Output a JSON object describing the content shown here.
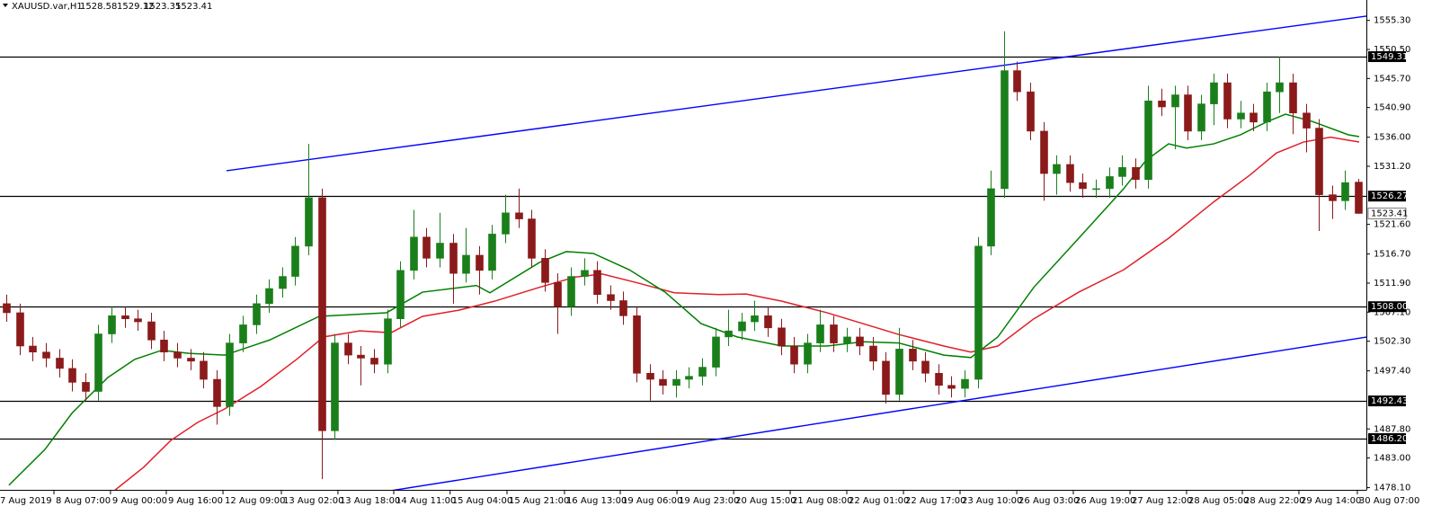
{
  "chart_data": {
    "type": "candlestick",
    "title": "XAUUSD.var,H1",
    "up_color": "#1a7f1a",
    "down_color": "#8b1a1a",
    "xlim": [
      -0.5,
      103.61
    ],
    "ylim": [
      1477.74,
      1558.67
    ],
    "yticks": [
      {
        "value": 1555.3,
        "label": "1555.30"
      },
      {
        "value": 1550.5,
        "label": "1550.50"
      },
      {
        "value": 1545.7,
        "label": "1545.70"
      },
      {
        "value": 1540.9,
        "label": "1540.90"
      },
      {
        "value": 1536,
        "label": "1536.00"
      },
      {
        "value": 1531.2,
        "label": "1531.20"
      },
      {
        "value": 1521.6,
        "label": "1521.60"
      },
      {
        "value": 1516.7,
        "label": "1516.70"
      },
      {
        "value": 1511.9,
        "label": "1511.90"
      },
      {
        "value": 1507.1,
        "label": "1507.10"
      },
      {
        "value": 1502.3,
        "label": "1502.30"
      },
      {
        "value": 1497.4,
        "label": "1497.40"
      },
      {
        "value": 1487.8,
        "label": "1487.80"
      },
      {
        "value": 1483,
        "label": "1483.00"
      },
      {
        "value": 1478.1,
        "label": "1478.10"
      }
    ],
    "xticks": [
      {
        "value": -0.64,
        "label": "7 Aug 2019"
      },
      {
        "value": 3.61,
        "label": "8 Aug 07:00"
      },
      {
        "value": 7.92,
        "label": "9 Aug 00:00"
      },
      {
        "value": 12.17,
        "label": "9 Aug 16:00"
      },
      {
        "value": 16.49,
        "label": "12 Aug 09:00"
      },
      {
        "value": 20.94,
        "label": "13 Aug 02:00"
      },
      {
        "value": 25.25,
        "label": "13 Aug 18:00"
      },
      {
        "value": 29.5,
        "label": "14 Aug 11:00"
      },
      {
        "value": 33.8,
        "label": "15 Aug 04:00"
      },
      {
        "value": 38.13,
        "label": "15 Aug 21:00"
      },
      {
        "value": 42.51,
        "label": "16 Aug 13:00"
      },
      {
        "value": 46.76,
        "label": "19 Aug 06:00"
      },
      {
        "value": 51.08,
        "label": "19 Aug 23:00"
      },
      {
        "value": 55.4,
        "label": "20 Aug 15:00"
      },
      {
        "value": 59.71,
        "label": "21 Aug 08:00"
      },
      {
        "value": 64.02,
        "label": "22 Aug 01:00"
      },
      {
        "value": 68.34,
        "label": "22 Aug 17:00"
      },
      {
        "value": 72.65,
        "label": "23 Aug 10:00"
      },
      {
        "value": 76.97,
        "label": "26 Aug 03:00"
      },
      {
        "value": 81.28,
        "label": "26 Aug 19:00"
      },
      {
        "value": 85.6,
        "label": "27 Aug 12:00"
      },
      {
        "value": 89.91,
        "label": "28 Aug 05:00"
      },
      {
        "value": 94.16,
        "label": "28 Aug 22:00"
      },
      {
        "value": 98.47,
        "label": "29 Aug 14:00"
      },
      {
        "value": 102.92,
        "label": "30 Aug 07:00"
      }
    ],
    "open": [
      1508.5,
      1507.0,
      1501.5,
      1500.5,
      1499.5,
      1497.8,
      1495.5,
      1494.0,
      1503.5,
      1506.5,
      1506.0,
      1505.5,
      1502.5,
      1500.5,
      1499.5,
      1499.0,
      1496.0,
      1491.5,
      1502.0,
      1505.0,
      1508.5,
      1511.0,
      1513.0,
      1518.0,
      1526.0,
      1487.5,
      1502.0,
      1500.0,
      1499.5,
      1498.5,
      1506.0,
      1514.0,
      1519.5,
      1516.0,
      1518.5,
      1513.5,
      1516.5,
      1514.0,
      1520.0,
      1523.5,
      1522.5,
      1516.0,
      1512.0,
      1508.0,
      1513.0,
      1514.0,
      1510.0,
      1509.0,
      1506.5,
      1497.0,
      1496.0,
      1495.0,
      1496.0,
      1496.5,
      1498.0,
      1503.0,
      1504.0,
      1505.5,
      1506.5,
      1504.5,
      1501.5,
      1498.5,
      1502.0,
      1505.0,
      1502.0,
      1503.0,
      1501.5,
      1499.0,
      1493.5,
      1501.0,
      1499.0,
      1497.0,
      1495.0,
      1494.5,
      1496.0,
      1518.0,
      1527.5,
      1547.0,
      1543.5,
      1537.0,
      1530.0,
      1531.5,
      1528.5,
      1527.5,
      1527.5,
      1529.5,
      1531.0,
      1529.0,
      1542.0,
      1541.0,
      1543.0,
      1537.0,
      1541.5,
      1545.0,
      1539.0,
      1540.0,
      1538.5,
      1543.5,
      1545.0,
      1540.0,
      1537.5,
      1526.5,
      1525.5,
      1528.58
    ],
    "high": [
      1510.0,
      1508.5,
      1503.0,
      1502.0,
      1501.0,
      1499.3,
      1497.0,
      1505.0,
      1508.0,
      1508.0,
      1507.5,
      1507.0,
      1504.0,
      1502.0,
      1501.0,
      1500.5,
      1497.5,
      1503.5,
      1506.5,
      1510.0,
      1512.5,
      1514.5,
      1519.5,
      1534.9,
      1527.5,
      1503.5,
      1503.5,
      1501.5,
      1501.0,
      1507.5,
      1515.5,
      1524.0,
      1521.0,
      1523.5,
      1520.0,
      1521.0,
      1518.0,
      1521.5,
      1526.5,
      1527.5,
      1524.0,
      1517.5,
      1513.5,
      1514.5,
      1516.0,
      1515.5,
      1511.5,
      1510.5,
      1508.0,
      1498.5,
      1497.5,
      1497.5,
      1498.0,
      1499.5,
      1504.5,
      1507.5,
      1507.0,
      1509.0,
      1508.0,
      1506.0,
      1503.0,
      1503.5,
      1507.5,
      1506.5,
      1504.5,
      1504.5,
      1503.0,
      1500.5,
      1504.5,
      1502.5,
      1500.5,
      1498.5,
      1496.5,
      1497.5,
      1519.5,
      1530.5,
      1553.5,
      1548.5,
      1545.0,
      1538.5,
      1533.0,
      1533.0,
      1530.0,
      1529.0,
      1531.0,
      1533.0,
      1532.5,
      1544.5,
      1544.0,
      1544.5,
      1544.5,
      1543.0,
      1546.5,
      1546.5,
      1542.0,
      1541.5,
      1545.0,
      1549.3,
      1546.5,
      1541.5,
      1539.0,
      1528.0,
      1530.5,
      1529.12
    ],
    "low": [
      1505.5,
      1500.0,
      1499.0,
      1498.0,
      1496.3,
      1494.0,
      1492.5,
      1492.5,
      1502.0,
      1504.5,
      1504.0,
      1501.0,
      1499.0,
      1498.0,
      1497.5,
      1494.5,
      1488.5,
      1490.0,
      1500.5,
      1503.5,
      1507.0,
      1509.5,
      1511.5,
      1516.5,
      1479.5,
      1486.0,
      1498.5,
      1495.0,
      1497.0,
      1497.0,
      1504.5,
      1512.5,
      1514.5,
      1514.5,
      1508.5,
      1512.0,
      1510.0,
      1512.5,
      1518.5,
      1521.0,
      1514.5,
      1510.5,
      1503.5,
      1506.5,
      1511.5,
      1508.5,
      1507.5,
      1505.0,
      1495.5,
      1492.5,
      1493.5,
      1493.0,
      1494.5,
      1495.0,
      1496.5,
      1501.5,
      1502.5,
      1504.0,
      1503.0,
      1500.0,
      1497.0,
      1497.0,
      1500.5,
      1500.5,
      1500.5,
      1500.0,
      1497.5,
      1492.0,
      1492.5,
      1497.5,
      1495.5,
      1493.5,
      1493.0,
      1493.0,
      1494.5,
      1516.5,
      1526.0,
      1542.0,
      1535.5,
      1525.5,
      1526.5,
      1527.0,
      1526.0,
      1526.0,
      1526.0,
      1528.0,
      1527.5,
      1527.5,
      1539.5,
      1534.0,
      1535.5,
      1535.5,
      1538.0,
      1537.5,
      1537.5,
      1537.0,
      1537.0,
      1540.0,
      1536.5,
      1533.5,
      1520.5,
      1522.5,
      1524.0,
      1523.35
    ],
    "close": [
      1507.0,
      1501.5,
      1500.5,
      1499.5,
      1497.8,
      1495.5,
      1494.0,
      1503.5,
      1506.5,
      1506.0,
      1505.5,
      1502.5,
      1500.5,
      1499.5,
      1499.0,
      1496.0,
      1491.5,
      1502.0,
      1505.0,
      1508.5,
      1511.0,
      1513.0,
      1518.0,
      1526.0,
      1487.5,
      1502.0,
      1500.0,
      1499.5,
      1498.5,
      1506.0,
      1514.0,
      1519.5,
      1516.0,
      1518.5,
      1513.5,
      1516.5,
      1514.0,
      1520.0,
      1523.5,
      1522.5,
      1516.0,
      1512.0,
      1508.0,
      1513.0,
      1514.0,
      1510.0,
      1509.0,
      1506.5,
      1497.0,
      1496.0,
      1495.0,
      1496.0,
      1496.5,
      1498.0,
      1503.0,
      1504.0,
      1505.5,
      1506.5,
      1504.5,
      1501.5,
      1498.5,
      1502.0,
      1505.0,
      1502.0,
      1503.0,
      1501.5,
      1499.0,
      1493.5,
      1501.0,
      1499.0,
      1497.0,
      1495.0,
      1494.5,
      1496.0,
      1518.0,
      1527.5,
      1547.0,
      1543.5,
      1537.0,
      1530.0,
      1531.5,
      1528.5,
      1527.5,
      1527.5,
      1529.5,
      1531.0,
      1529.0,
      1542.0,
      1541.0,
      1543.0,
      1537.0,
      1541.5,
      1545.0,
      1539.0,
      1540.0,
      1538.5,
      1543.5,
      1545.0,
      1540.0,
      1537.5,
      1526.5,
      1525.5,
      1528.5,
      1523.41
    ],
    "ma_fast": {
      "color": "#008000",
      "x": [
        0.18,
        2.92,
        4.98,
        7.72,
        9.77,
        11.83,
        13.88,
        16.62,
        20.05,
        23.82,
        28.95,
        31.69,
        35.8,
        36.83,
        40.6,
        42.65,
        44.71,
        47.45,
        50.18,
        52.92,
        55.66,
        59.08,
        62.51,
        65.25,
        67.99,
        71.42,
        73.47,
        75.53,
        78.27,
        81.69,
        85.12,
        86.83,
        88.54,
        89.91,
        91.97,
        94.02,
        96.08,
        97.45,
        99.5,
        102.24,
        103.06
      ],
      "values": [
        1478.5,
        1484.4,
        1490.4,
        1496.3,
        1499.3,
        1500.8,
        1500.3,
        1500.0,
        1502.5,
        1506.4,
        1507.0,
        1510.4,
        1511.5,
        1510.3,
        1515.3,
        1517.1,
        1516.8,
        1514.1,
        1510.4,
        1505.2,
        1503.0,
        1501.5,
        1501.5,
        1502.2,
        1502.0,
        1500.0,
        1499.6,
        1503.0,
        1511.2,
        1519.3,
        1527.5,
        1532.2,
        1534.9,
        1534.2,
        1534.9,
        1536.4,
        1538.6,
        1539.8,
        1538.6,
        1536.4,
        1536.1
      ]
    },
    "ma_slow": {
      "color": "#e0202a",
      "x": [
        8.27,
        10.46,
        12.51,
        14.57,
        16.62,
        19.36,
        22.1,
        24.16,
        26.9,
        29.29,
        31.69,
        34.43,
        37.17,
        40.6,
        43.34,
        45.39,
        48.13,
        50.87,
        54.29,
        56.35,
        59.08,
        62.51,
        65.25,
        67.99,
        71.42,
        73.47,
        75.53,
        78.27,
        81.69,
        85.12,
        88.54,
        91.97,
        94.71,
        96.76,
        98.82,
        100.87,
        103.06
      ],
      "values": [
        1477.7,
        1481.5,
        1485.9,
        1488.9,
        1491.1,
        1494.8,
        1499.3,
        1503.0,
        1504.0,
        1503.7,
        1506.4,
        1507.4,
        1508.9,
        1511.2,
        1512.9,
        1513.4,
        1511.9,
        1510.3,
        1510.0,
        1510.1,
        1508.9,
        1507.0,
        1505.2,
        1503.4,
        1501.5,
        1500.5,
        1501.5,
        1506.0,
        1510.4,
        1514.1,
        1519.3,
        1525.3,
        1529.7,
        1533.4,
        1535.2,
        1536.0,
        1535.2
      ]
    },
    "trendline_color": "#0000ff",
    "trendlines": [
      {
        "x": [
          16.76,
          103.61
        ],
        "values": [
          1530.46,
          1556.0
        ]
      },
      {
        "x": [
          24.01,
          103.61
        ],
        "values": [
          1475.8,
          1502.98
        ]
      }
    ],
    "levels": [
      1549.31,
      1526.27,
      {
        "value": 1508,
        "label": "1508.00"
      },
      1492.43,
      {
        "value": 1486.2,
        "label": "1486.20"
      }
    ]
  }
}
